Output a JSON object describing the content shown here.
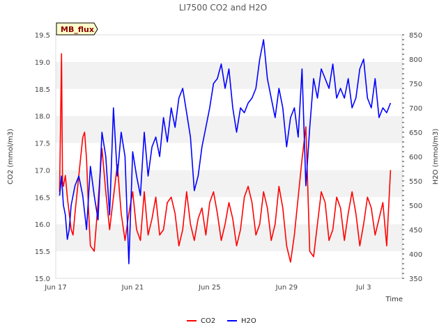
{
  "chart_data": {
    "type": "line",
    "title": "LI7500 CO2 and H2O",
    "site_label": "MB_flux",
    "xlabel": "Time",
    "ylabel_left": "CO2 (mmol/m3)",
    "ylabel_right": "H2O (mmol/m3)",
    "ylim_left": [
      15.0,
      19.5
    ],
    "ylim_right": [
      350,
      850
    ],
    "xlim": [
      0,
      18.0
    ],
    "x_ticks": [
      {
        "label": "Jun 17",
        "day": 0
      },
      {
        "label": "Jun 21",
        "day": 4
      },
      {
        "label": "Jun 25",
        "day": 8
      },
      {
        "label": "Jun 29",
        "day": 12
      },
      {
        "label": "Jul 3",
        "day": 16
      }
    ],
    "y_ticks_left": [
      15.0,
      15.5,
      16.0,
      16.5,
      17.0,
      17.5,
      18.0,
      18.5,
      19.0,
      19.5
    ],
    "y_ticks_right": [
      350,
      400,
      450,
      500,
      550,
      600,
      650,
      700,
      750,
      800,
      850
    ],
    "y_tick_labels_left": [
      "15.0",
      "15.5",
      "16.0",
      "16.5",
      "17.0",
      "17.5",
      "18.0",
      "18.5",
      "19.0",
      "19.5"
    ],
    "y_tick_labels_right": [
      "350",
      "400",
      "450",
      "500",
      "550",
      "600",
      "650",
      "700",
      "750",
      "800",
      "850"
    ],
    "grid": "horizontal bands",
    "legend_position": "bottom-center",
    "series": [
      {
        "name": "CO2",
        "axis": "left",
        "color": "#ff0000",
        "x": [
          0.2,
          0.3,
          0.35,
          0.4,
          0.5,
          0.6,
          0.8,
          0.9,
          1.0,
          1.2,
          1.4,
          1.5,
          1.6,
          1.7,
          1.8,
          2.0,
          2.2,
          2.4,
          2.6,
          2.8,
          3.0,
          3.2,
          3.4,
          3.6,
          3.8,
          4.0,
          4.2,
          4.4,
          4.6,
          4.8,
          5.0,
          5.2,
          5.4,
          5.6,
          5.8,
          6.0,
          6.2,
          6.4,
          6.6,
          6.8,
          7.0,
          7.2,
          7.4,
          7.6,
          7.8,
          8.0,
          8.2,
          8.4,
          8.6,
          8.8,
          9.0,
          9.2,
          9.4,
          9.6,
          9.8,
          10.0,
          10.2,
          10.4,
          10.6,
          10.8,
          11.0,
          11.2,
          11.4,
          11.6,
          11.8,
          12.0,
          12.2,
          12.4,
          12.6,
          12.8,
          13.0,
          13.2,
          13.4,
          13.6,
          13.8,
          14.0,
          14.2,
          14.4,
          14.6,
          14.8,
          15.0,
          15.2,
          15.4,
          15.6,
          15.8,
          16.0,
          16.2,
          16.4,
          16.6,
          16.8,
          17.0,
          17.2,
          17.4
        ],
        "values": [
          16.6,
          19.15,
          16.8,
          16.7,
          16.9,
          16.5,
          15.9,
          15.8,
          16.2,
          16.9,
          17.6,
          17.7,
          17.2,
          16.3,
          15.6,
          15.5,
          16.4,
          17.4,
          16.6,
          15.9,
          16.5,
          17.1,
          16.2,
          15.7,
          16.2,
          16.6,
          15.9,
          15.7,
          16.6,
          15.8,
          16.1,
          16.5,
          15.8,
          15.9,
          16.4,
          16.5,
          16.2,
          15.6,
          15.9,
          16.6,
          16.0,
          15.7,
          16.1,
          16.3,
          15.8,
          16.4,
          16.6,
          16.2,
          15.7,
          16.0,
          16.4,
          16.1,
          15.6,
          15.9,
          16.5,
          16.7,
          16.4,
          15.8,
          16.0,
          16.6,
          16.3,
          15.7,
          16.0,
          16.7,
          16.3,
          15.6,
          15.3,
          15.8,
          16.5,
          17.2,
          17.8,
          15.5,
          15.4,
          16.0,
          16.6,
          16.4,
          15.7,
          15.9,
          16.5,
          16.3,
          15.7,
          16.2,
          16.6,
          16.2,
          15.6,
          16.0,
          16.5,
          16.3,
          15.8,
          16.1,
          16.4,
          15.6,
          17.0
        ]
      },
      {
        "name": "H2O",
        "axis": "right",
        "color": "#0000ff",
        "x": [
          0.2,
          0.3,
          0.4,
          0.5,
          0.6,
          0.7,
          0.8,
          1.0,
          1.2,
          1.4,
          1.6,
          1.8,
          2.0,
          2.2,
          2.4,
          2.6,
          2.8,
          3.0,
          3.2,
          3.4,
          3.6,
          3.8,
          4.0,
          4.2,
          4.4,
          4.6,
          4.8,
          5.0,
          5.2,
          5.4,
          5.6,
          5.8,
          6.0,
          6.2,
          6.4,
          6.6,
          6.8,
          7.0,
          7.2,
          7.4,
          7.6,
          7.8,
          8.0,
          8.2,
          8.4,
          8.6,
          8.8,
          9.0,
          9.2,
          9.4,
          9.6,
          9.8,
          10.0,
          10.2,
          10.4,
          10.6,
          10.8,
          11.0,
          11.2,
          11.4,
          11.6,
          11.8,
          12.0,
          12.2,
          12.4,
          12.6,
          12.8,
          13.0,
          13.2,
          13.4,
          13.6,
          13.8,
          14.0,
          14.2,
          14.4,
          14.6,
          14.8,
          15.0,
          15.2,
          15.4,
          15.6,
          15.8,
          16.0,
          16.2,
          16.4,
          16.6,
          16.8,
          17.0,
          17.2,
          17.4
        ],
        "values": [
          520,
          560,
          500,
          480,
          430,
          450,
          500,
          540,
          560,
          520,
          450,
          580,
          520,
          470,
          650,
          600,
          480,
          700,
          560,
          650,
          600,
          380,
          610,
          560,
          520,
          650,
          560,
          620,
          640,
          600,
          680,
          630,
          700,
          660,
          720,
          740,
          690,
          640,
          530,
          560,
          620,
          660,
          700,
          750,
          760,
          790,
          740,
          780,
          700,
          650,
          700,
          690,
          710,
          720,
          740,
          800,
          840,
          760,
          720,
          680,
          740,
          700,
          620,
          680,
          700,
          640,
          780,
          540,
          660,
          760,
          720,
          780,
          760,
          740,
          790,
          720,
          740,
          720,
          760,
          700,
          720,
          780,
          800,
          720,
          700,
          760,
          680,
          700,
          690,
          710
        ]
      }
    ]
  }
}
